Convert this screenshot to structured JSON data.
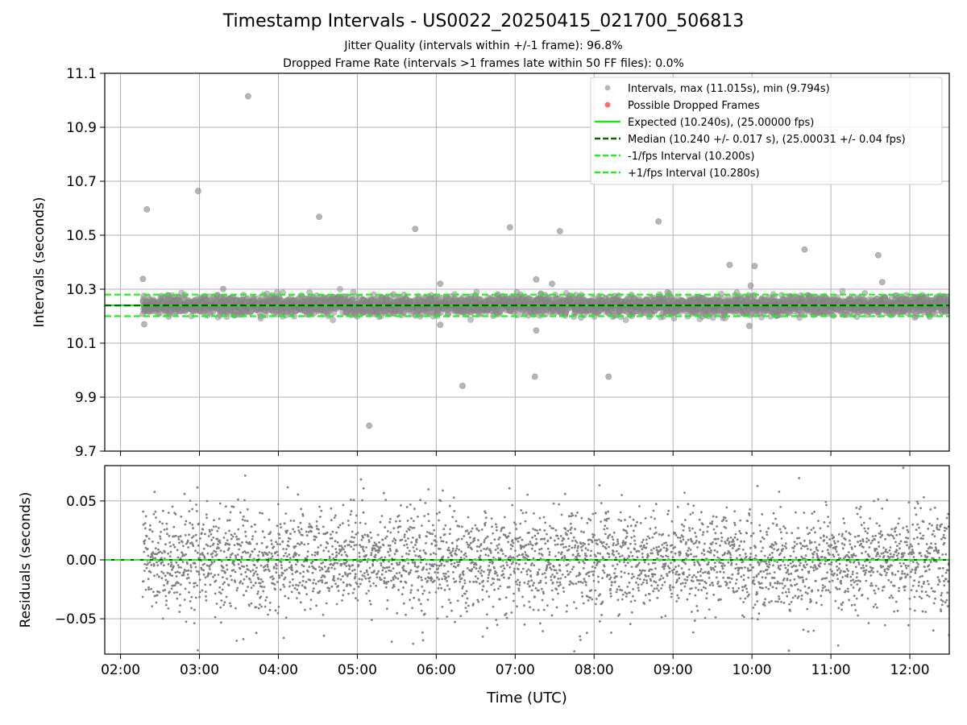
{
  "title": "Timestamp Intervals - US0022_20250415_021700_506813",
  "subtitle_jitter": "Jitter Quality (intervals within +/-1 frame): 96.8%",
  "subtitle_dropped": "Dropped Frame Rate (intervals >1 frames late within 50 FF files): 0.0%",
  "colors": {
    "points": "#808080",
    "dropped": "#ff4d4d",
    "expected": "#1fe11f",
    "median": "#006400",
    "bounds": "#22ee22",
    "grid": "#b0b0b0"
  },
  "chart_data": [
    {
      "type": "scatter",
      "panel": "intervals",
      "ylabel": "Intervals (seconds)",
      "xlabel": "",
      "ylim": [
        9.7,
        11.1
      ],
      "yticks": [
        "9.7",
        "9.9",
        "10.1",
        "10.3",
        "10.5",
        "10.7",
        "10.9",
        "11.1"
      ],
      "xlim_hours": [
        1.8,
        12.5
      ],
      "xticks": [
        "02:00",
        "03:00",
        "04:00",
        "05:00",
        "06:00",
        "07:00",
        "08:00",
        "09:00",
        "10:00",
        "11:00",
        "12:00"
      ],
      "grid": true,
      "legend_position": "top-right",
      "legend": [
        {
          "label": "Intervals, max (11.015s), min (9.794s)",
          "kind": "marker",
          "color": "#a9a9a9"
        },
        {
          "label": "Possible Dropped Frames",
          "kind": "marker",
          "color": "#ff4d4d"
        },
        {
          "label": "Expected (10.240s), (25.00000 fps)",
          "kind": "solid",
          "color": "#1fe11f"
        },
        {
          "label": "Median (10.240 +/- 0.017 s), (25.00031 +/- 0.04 fps)",
          "kind": "dashed",
          "color": "#006400"
        },
        {
          "label": "-1/fps Interval (10.200s)",
          "kind": "dashed",
          "color": "#22ee22"
        },
        {
          "label": "+1/fps Interval (10.280s)",
          "kind": "dashed",
          "color": "#22ee22"
        }
      ],
      "expected": 10.24,
      "median": 10.24,
      "lower_bound": 10.2,
      "upper_bound": 10.28,
      "data_range_hours": [
        2.28,
        12.5
      ],
      "band_noise_sd": 0.017,
      "outliers": [
        {
          "t": "02:20",
          "y": 10.596
        },
        {
          "t": "02:59",
          "y": 10.664
        },
        {
          "t": "03:37",
          "y": 11.015
        },
        {
          "t": "04:31",
          "y": 10.568
        },
        {
          "t": "05:09",
          "y": 9.794
        },
        {
          "t": "05:44",
          "y": 10.523
        },
        {
          "t": "06:20",
          "y": 9.942
        },
        {
          "t": "06:56",
          "y": 10.529
        },
        {
          "t": "07:15",
          "y": 9.976
        },
        {
          "t": "07:34",
          "y": 10.515
        },
        {
          "t": "08:11",
          "y": 9.976
        },
        {
          "t": "08:49",
          "y": 10.551
        },
        {
          "t": "09:43",
          "y": 10.39
        },
        {
          "t": "10:02",
          "y": 10.386
        },
        {
          "t": "10:40",
          "y": 10.447
        },
        {
          "t": "11:36",
          "y": 10.426
        },
        {
          "t": "02:17",
          "y": 10.338
        },
        {
          "t": "03:18",
          "y": 10.301
        },
        {
          "t": "06:03",
          "y": 10.32
        },
        {
          "t": "07:16",
          "y": 10.336
        },
        {
          "t": "07:28",
          "y": 10.32
        },
        {
          "t": "09:59",
          "y": 10.313
        },
        {
          "t": "11:39",
          "y": 10.326
        },
        {
          "t": "07:16",
          "y": 10.147
        },
        {
          "t": "09:58",
          "y": 10.164
        },
        {
          "t": "06:03",
          "y": 10.168
        },
        {
          "t": "02:18",
          "y": 10.17
        }
      ]
    },
    {
      "type": "scatter",
      "panel": "residuals",
      "ylabel": "Residuals (seconds)",
      "xlabel": "Time (UTC)",
      "ylim": [
        -0.08,
        0.08
      ],
      "yticks": [
        "−0.05",
        "0.00",
        "0.05"
      ],
      "ytick_values": [
        -0.05,
        0,
        0.05
      ],
      "grid": true,
      "zero_line": 0,
      "residual_noise_sd": 0.022
    }
  ]
}
